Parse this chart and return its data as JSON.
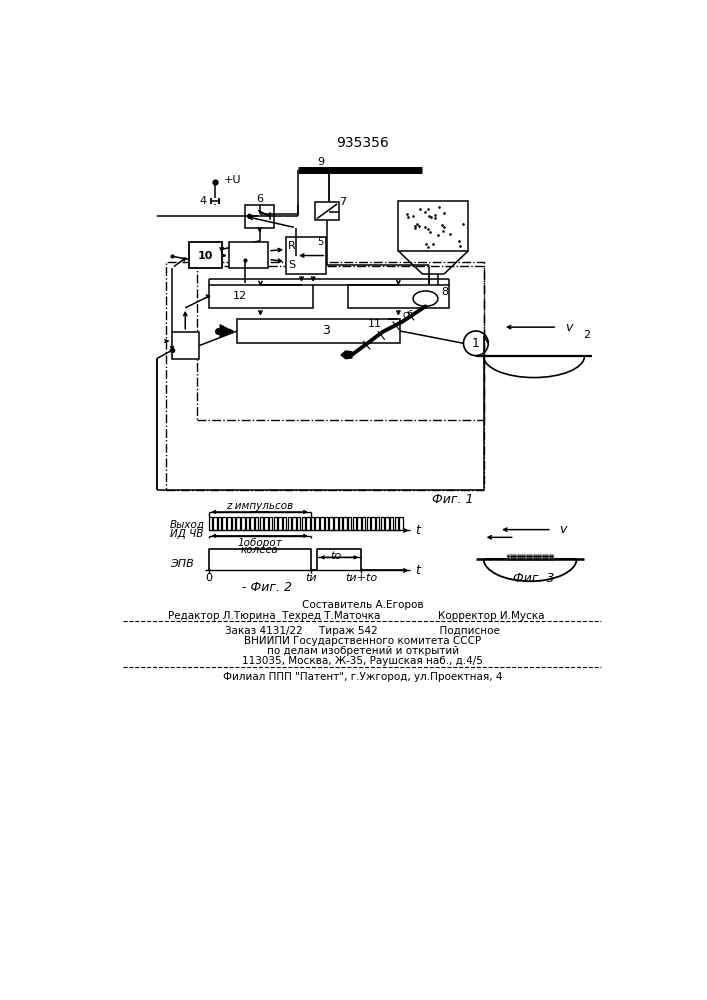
{
  "title": "935356",
  "fig1_label": "Фиг. 1",
  "fig2_label": "Фиг. 2",
  "fig3_label": "Фиг. 3",
  "background_color": "#ffffff",
  "footnote_lines": [
    "Составитель А.Егоров",
    "Редактор Л.Тюрина  Техред Т.Маточка",
    "Корректор И.Муска",
    "Заказ 4131/22     Тираж 542                   Подписное",
    "ВНИИПИ Государственного комитета СССР",
    "по делам изобретений и открытий",
    "113035, Москва, Ж-35, Раушская наб., д.4/5",
    "Филиал ППП \"Патент\", г.Ужгород, ул.Проектная, 4"
  ]
}
